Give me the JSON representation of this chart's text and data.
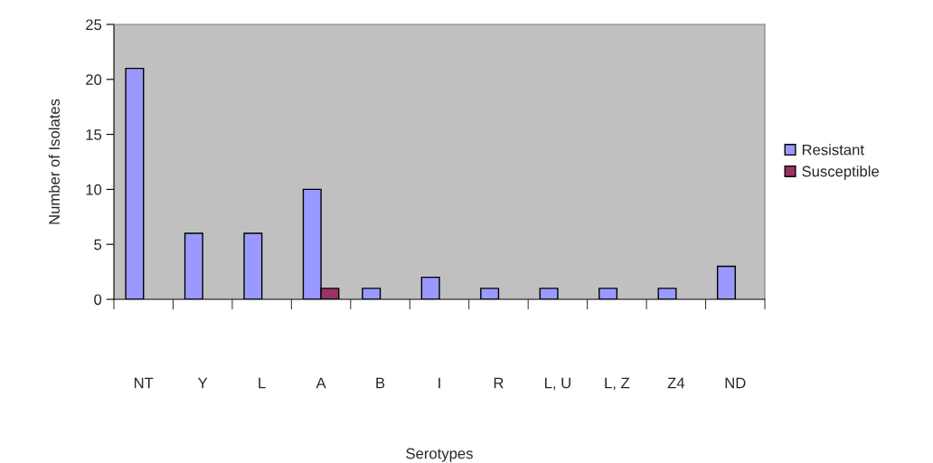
{
  "chart_data": {
    "type": "bar",
    "xlabel": "Serotypes",
    "ylabel": "Number of Isolates",
    "categories": [
      "NT",
      "Y",
      "L",
      "A",
      "B",
      "I",
      "R",
      "L, U",
      "L, Z",
      "Z4",
      "ND"
    ],
    "series": [
      {
        "name": "Resistant",
        "color": "#9999ff",
        "values": [
          21,
          6,
          6,
          10,
          1,
          2,
          1,
          1,
          1,
          1,
          3
        ]
      },
      {
        "name": "Susceptible",
        "color": "#993366",
        "values": [
          null,
          null,
          null,
          1,
          null,
          null,
          null,
          null,
          null,
          null,
          null
        ]
      }
    ],
    "ylim": [
      0,
      25
    ],
    "yticks": [
      0,
      5,
      10,
      15,
      20,
      25
    ],
    "grid": false,
    "legend": "right"
  }
}
